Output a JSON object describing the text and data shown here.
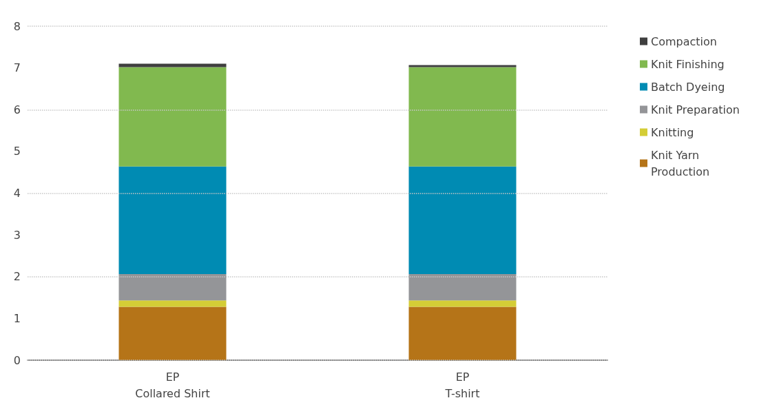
{
  "chart_data": {
    "type": "bar",
    "stacked": true,
    "categories": [
      "EP\nCollared Shirt",
      "EP\nT-shirt"
    ],
    "series": [
      {
        "name": "Knit Yarn Production",
        "color": "#b57418",
        "values": [
          1.28,
          1.28
        ]
      },
      {
        "name": "Knitting",
        "color": "#d4cd36",
        "values": [
          0.15,
          0.15
        ]
      },
      {
        "name": "Knit Preparation",
        "color": "#949598",
        "values": [
          0.63,
          0.63
        ]
      },
      {
        "name": "Batch Dyeing",
        "color": "#008bb3",
        "values": [
          2.58,
          2.58
        ]
      },
      {
        "name": "Knit Finishing",
        "color": "#81b94f",
        "values": [
          2.38,
          2.38
        ]
      },
      {
        "name": "Compaction",
        "color": "#3f3f3f",
        "values": [
          0.08,
          0.05
        ]
      }
    ],
    "ylim": [
      0,
      8
    ],
    "yticks": [
      0,
      1,
      2,
      3,
      4,
      5,
      6,
      7,
      8
    ],
    "grid": "y",
    "legend": "top right"
  }
}
